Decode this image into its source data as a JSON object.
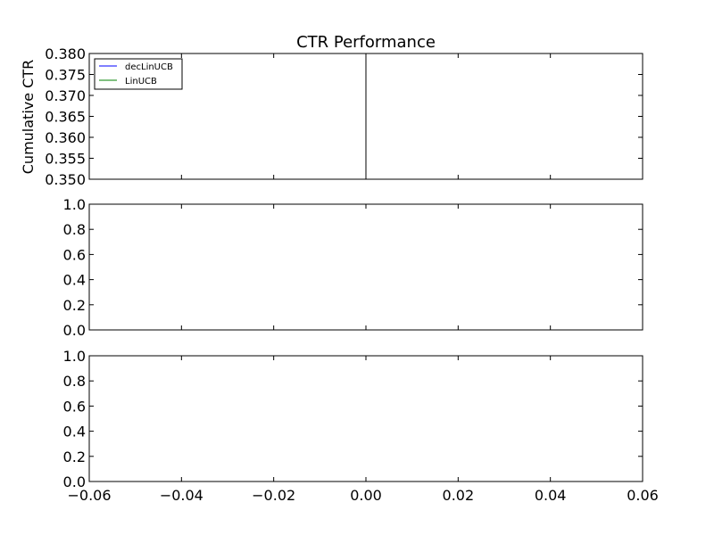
{
  "figure": {
    "background": "#ffffff",
    "axes_color": "#000000"
  },
  "chart_data": [
    {
      "type": "line",
      "title": "CTR Performance",
      "xlabel": "",
      "ylabel": "Cumulative CTR",
      "xlim": [
        -0.06,
        0.06
      ],
      "ylim": [
        0.35,
        0.38
      ],
      "yticks": [
        "0.350",
        "0.355",
        "0.360",
        "0.365",
        "0.370",
        "0.375",
        "0.380"
      ],
      "xticks": [],
      "grid": false,
      "legend": {
        "placement": "top-left",
        "entries": [
          {
            "name": "decLinUCB",
            "color": "#0000ff"
          },
          {
            "name": "LinUCB",
            "color": "#008000"
          }
        ]
      },
      "series": [
        {
          "name": "decLinUCB",
          "color": "#0000ff",
          "x": [],
          "y": []
        },
        {
          "name": "LinUCB",
          "color": "#008000",
          "x": [],
          "y": []
        }
      ],
      "vlines": [
        {
          "x": 0.0,
          "color": "#000000"
        }
      ]
    },
    {
      "type": "line",
      "title": "",
      "xlabel": "",
      "ylabel": "",
      "xlim": [
        -0.06,
        0.06
      ],
      "ylim": [
        0.0,
        1.0
      ],
      "yticks": [
        "0.0",
        "0.2",
        "0.4",
        "0.6",
        "0.8",
        "1.0"
      ],
      "xticks": [],
      "grid": false,
      "series": []
    },
    {
      "type": "line",
      "title": "",
      "xlabel": "",
      "ylabel": "",
      "xlim": [
        -0.06,
        0.06
      ],
      "ylim": [
        0.0,
        1.0
      ],
      "yticks": [
        "0.0",
        "0.2",
        "0.4",
        "0.6",
        "0.8",
        "1.0"
      ],
      "xticks": [
        "−0.06",
        "−0.04",
        "−0.02",
        "0.00",
        "0.02",
        "0.04",
        "0.06"
      ],
      "grid": false,
      "series": []
    }
  ]
}
